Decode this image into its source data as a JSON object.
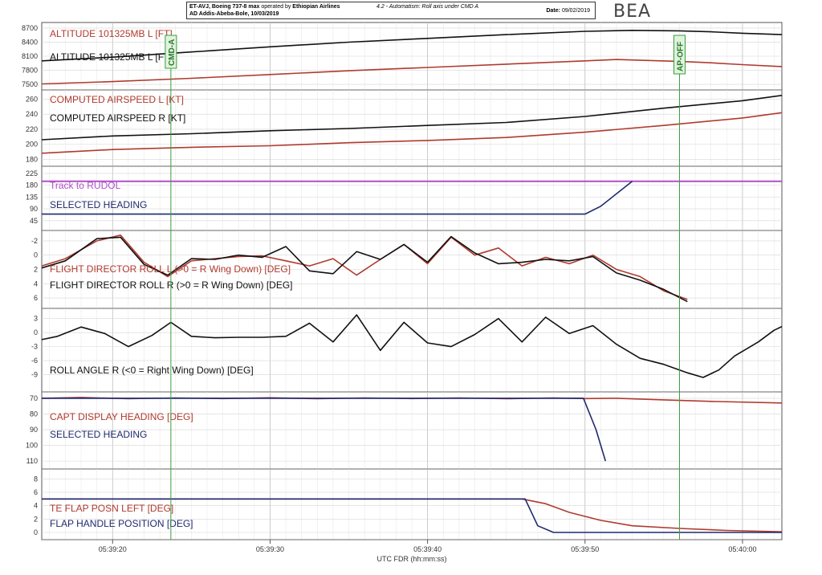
{
  "header": {
    "aircraft": "ET-AVJ, Boeing 737-8 max",
    "operated_by": "operated by",
    "operator": "Ethiopian Airlines",
    "route": "AD Addis-Abeba-Bole, 10/03/2019",
    "section": "4.2 - Automatism: Roll axis under CMD A",
    "date_label": "Date:",
    "date_value": "09/02/2019"
  },
  "logo_text": "BEA",
  "colors": {
    "red": "#b03a2e",
    "black": "#111111",
    "navy": "#1f2a6e",
    "purple": "#b04fc8",
    "green": "#3e9c3e"
  },
  "chart_data": {
    "type": "line",
    "xlabel": "UTC FDR (hh:mm:ss)",
    "x_ticks": [
      "05:39:20",
      "05:39:30",
      "05:39:40",
      "05:39:50",
      "05:40:00"
    ],
    "x_tick_seconds": [
      20,
      30,
      40,
      50,
      60
    ],
    "x_range_seconds": [
      15.5,
      62.5
    ],
    "markers": [
      {
        "label": "CMD-A",
        "t": 23.7
      },
      {
        "label": "AP-OFF",
        "t": 56.0
      }
    ],
    "panels": [
      {
        "id": "altitude",
        "y_ticks": [
          8700,
          8400,
          8100,
          7800,
          7500
        ],
        "ylim": [
          7450,
          8750
        ],
        "series": [
          {
            "name": "ALTITUDE 101325MB L [FT]",
            "color": "red",
            "t": [
              15.5,
              20,
              25,
              30,
              35,
              40,
              45,
              50,
              52,
              54,
              56,
              58,
              60,
              62.5
            ],
            "v": [
              7510,
              7560,
              7630,
              7710,
              7790,
              7860,
              7930,
              8000,
              8030,
              8010,
              7990,
              7960,
              7920,
              7880
            ]
          },
          {
            "name": "ALTITUDE 101325MB L [FT]",
            "color": "black",
            "t": [
              15.5,
              20,
              25,
              30,
              35,
              40,
              45,
              50,
              53,
              56,
              58,
              60,
              62.5
            ],
            "v": [
              8000,
              8080,
              8190,
              8300,
              8400,
              8480,
              8560,
              8630,
              8650,
              8640,
              8620,
              8590,
              8560
            ]
          }
        ]
      },
      {
        "id": "airspeed",
        "y_ticks": [
          260,
          240,
          220,
          200,
          180
        ],
        "ylim": [
          175,
          268
        ],
        "series": [
          {
            "name": "COMPUTED AIRSPEED L [KT]",
            "color": "red",
            "t": [
              15.5,
              20,
              25,
              30,
              35,
              40,
              45,
              50,
              55,
              60,
              62.5
            ],
            "v": [
              188,
              193,
              196,
              198,
              202,
              205,
              209,
              216,
              225,
              235,
              242
            ]
          },
          {
            "name": "COMPUTED AIRSPEED R [KT]",
            "color": "black",
            "t": [
              15.5,
              20,
              25,
              30,
              35,
              40,
              45,
              50,
              55,
              60,
              62.5
            ],
            "v": [
              206,
              211,
              214,
              218,
              221,
              225,
              229,
              237,
              248,
              258,
              265
            ]
          }
        ]
      },
      {
        "id": "heading",
        "y_ticks": [
          225,
          180,
          135,
          90,
          45
        ],
        "ylim": [
          20,
          240
        ],
        "series": [
          {
            "name": "Track to RUDOL",
            "color": "purple",
            "t": [
              15.5,
              62.5
            ],
            "v": [
              195,
              195
            ]
          },
          {
            "name": "SELECTED HEADING",
            "color": "navy",
            "t": [
              15.5,
              50.0,
              51.0,
              53.0
            ],
            "v": [
              70,
              70,
              100,
              195
            ]
          }
        ]
      },
      {
        "id": "fd_roll",
        "y_ticks": [
          -2,
          0,
          2,
          4,
          6
        ],
        "ylim": [
          -3,
          7
        ],
        "inverted": true,
        "series": [
          {
            "name": "FLIGHT DIRECTOR ROLL L (>0 = R Wing Down) [DEG]",
            "color": "red",
            "t": [
              15.5,
              17,
              19,
              20.5,
              22,
              23.5,
              25,
              26.5,
              28,
              29.5,
              31,
              32.5,
              34,
              35.5,
              37,
              38.5,
              40,
              41.5,
              43,
              44.5,
              46,
              47.5,
              49,
              50.5,
              52,
              53.5,
              55,
              56.5
            ],
            "v": [
              1.5,
              0.5,
              -2.0,
              -2.8,
              1.0,
              3.0,
              0.8,
              0.5,
              0.2,
              0.1,
              0.8,
              1.5,
              0.5,
              2.8,
              0.6,
              -1.5,
              1.2,
              -2.5,
              0.0,
              -1.0,
              1.5,
              0.3,
              1.2,
              0.0,
              2.0,
              3.0,
              5.0,
              6.2
            ]
          },
          {
            "name": "FLIGHT DIRECTOR ROLL R (>0 = R Wing Down) [DEG]",
            "color": "black",
            "t": [
              15.5,
              17,
              19,
              20.5,
              22,
              23.5,
              25,
              26.5,
              28,
              29.5,
              31,
              32.5,
              34,
              35.5,
              37,
              38.5,
              40,
              41.5,
              43,
              44.5,
              46,
              47.5,
              49,
              50.5,
              52,
              53.5,
              55,
              56.5
            ],
            "v": [
              1.8,
              0.8,
              -2.3,
              -2.5,
              1.3,
              2.8,
              0.5,
              0.6,
              0.0,
              0.3,
              -1.2,
              2.2,
              2.6,
              -0.5,
              0.6,
              -1.5,
              1.0,
              -2.6,
              -0.3,
              1.2,
              1.0,
              0.6,
              0.8,
              0.2,
              2.5,
              3.5,
              4.8,
              6.5
            ]
          }
        ]
      },
      {
        "id": "roll_angle",
        "y_ticks": [
          3,
          0,
          -3,
          -6,
          -9
        ],
        "ylim": [
          -12,
          4.5
        ],
        "series": [
          {
            "name": "ROLL ANGLE R (<0 = Right Wing Down) [DEG]",
            "color": "black",
            "t": [
              15.5,
              16.5,
              18,
              19.5,
              21,
              22.5,
              23.7,
              25,
              26.5,
              28,
              29.5,
              31,
              32.5,
              34,
              35.5,
              37,
              38.5,
              40,
              41.5,
              43,
              44.5,
              46,
              47.5,
              49,
              50.5,
              52,
              53.5,
              55,
              56.5,
              57.5,
              58.5,
              59.5,
              61,
              62,
              62.5
            ],
            "v": [
              -1.5,
              -0.8,
              1.2,
              -0.2,
              -3.0,
              -0.6,
              2.2,
              -0.8,
              -1.1,
              -1.0,
              -1.0,
              -0.8,
              2.0,
              -2.0,
              3.8,
              -3.8,
              2.2,
              -2.2,
              -3.0,
              -0.4,
              3.0,
              -2.0,
              3.3,
              -0.2,
              1.5,
              -2.5,
              -5.5,
              -6.8,
              -8.6,
              -9.6,
              -8.0,
              -5.0,
              -2.0,
              0.5,
              1.3
            ]
          }
        ]
      },
      {
        "id": "capt_heading",
        "y_ticks": [
          70,
          80,
          90,
          100,
          110
        ],
        "ylim": [
          68,
          113
        ],
        "inverted": true,
        "series": [
          {
            "name": "CAPT DISPLAY HEADING [DEG]",
            "color": "red",
            "t": [
              15.5,
              18,
              21,
              24,
              27,
              30,
              33,
              36,
              39,
              42,
              45,
              48,
              50,
              52,
              55,
              58,
              62.5
            ],
            "v": [
              70.0,
              69.5,
              70.3,
              69.8,
              70.2,
              69.7,
              70.3,
              69.8,
              70.2,
              69.8,
              70.3,
              69.8,
              70.2,
              70.0,
              71.0,
              72.0,
              73.0
            ]
          },
          {
            "name": "SELECTED HEADING",
            "color": "navy",
            "t": [
              15.5,
              49.9,
              50.7,
              51.3
            ],
            "v": [
              70,
              70,
              90,
              110
            ]
          }
        ]
      },
      {
        "id": "flaps",
        "y_ticks": [
          8,
          6,
          4,
          2,
          0
        ],
        "ylim": [
          -0.6,
          9
        ],
        "series": [
          {
            "name": "TE FLAP POSN LEFT [DEG]",
            "color": "red",
            "t": [
              15.5,
              46.0,
              47.5,
              49.0,
              51.0,
              53.0,
              56.0,
              59.0,
              62.5
            ],
            "v": [
              5.0,
              5.0,
              4.3,
              3.0,
              1.8,
              1.0,
              0.6,
              0.3,
              0.1
            ]
          },
          {
            "name": "FLAP HANDLE POSITION [DEG]",
            "color": "navy",
            "t": [
              15.5,
              46.2,
              47.0,
              48.0,
              62.5
            ],
            "v": [
              5.0,
              5.0,
              1.0,
              0.0,
              0.0
            ]
          }
        ]
      }
    ]
  },
  "labels": {
    "altitude": [
      "ALTITUDE 101325MB L [FT]",
      "ALTITUDE 101325MB L [FT]"
    ],
    "airspeed": [
      "COMPUTED AIRSPEED L [KT]",
      "COMPUTED AIRSPEED R [KT]"
    ],
    "heading": [
      "Track to RUDOL",
      "SELECTED HEADING"
    ],
    "fd_roll": [
      "FLIGHT DIRECTOR ROLL L (>0 = R Wing Down) [DEG]",
      "FLIGHT DIRECTOR ROLL R (>0 = R Wing Down) [DEG]"
    ],
    "roll_angle": [
      "ROLL ANGLE R (<0 = Right Wing Down) [DEG]"
    ],
    "capt_heading": [
      "CAPT DISPLAY HEADING [DEG]",
      "SELECTED HEADING"
    ],
    "flaps": [
      "TE FLAP POSN LEFT [DEG]",
      "FLAP HANDLE POSITION [DEG]"
    ]
  }
}
